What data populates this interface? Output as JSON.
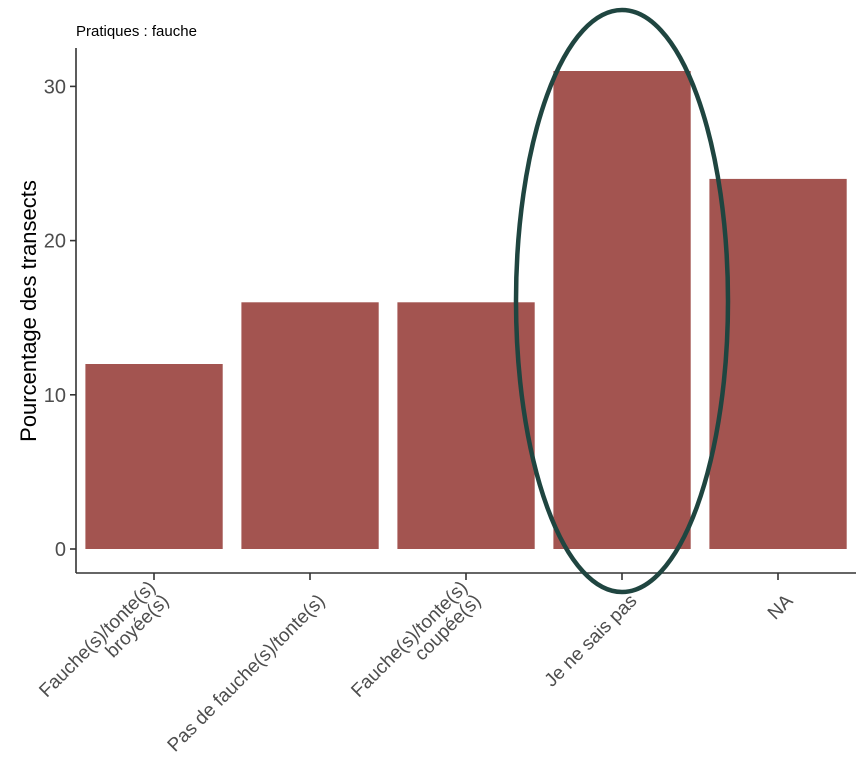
{
  "chart_data": {
    "type": "bar",
    "title": "Pratiques : fauche",
    "xlabel": "",
    "ylabel": "Pourcentage des transects",
    "categories": [
      [
        "Fauche(s)/tonte(s)",
        "broyée(s)"
      ],
      [
        "Pas de fauche(s)/tonte(s)"
      ],
      [
        "Fauche(s)/tonte(s)",
        "coupée(s)"
      ],
      [
        "Je ne sais pas"
      ],
      [
        "NA"
      ]
    ],
    "values": [
      12,
      16,
      16,
      31,
      24
    ],
    "ylim": [
      0,
      32
    ],
    "yticks": [
      0,
      10,
      20,
      30
    ],
    "grid": false,
    "legend": "none",
    "bar_color": "#a35450",
    "highlight": {
      "category_index": 3,
      "shape": "ellipse",
      "color": "#1f4540"
    }
  }
}
